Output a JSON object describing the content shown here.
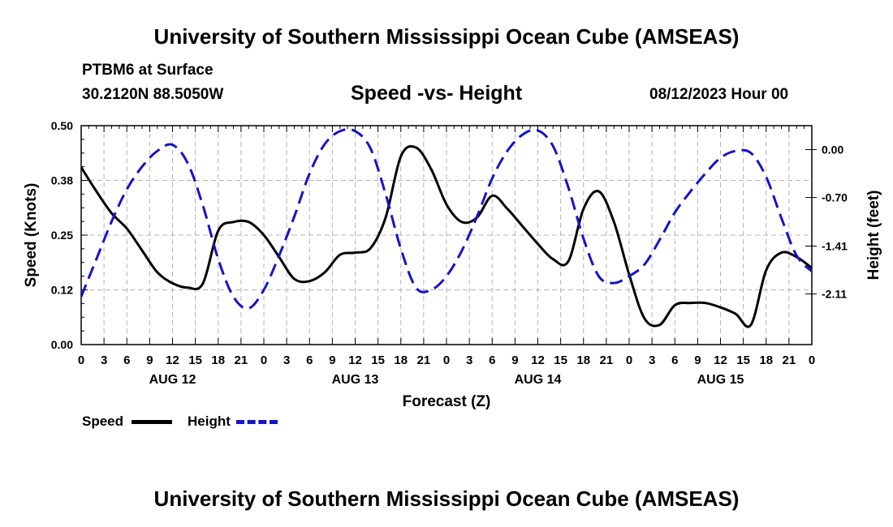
{
  "page": {
    "title_top": "University of Southern Mississippi Ocean Cube (AMSEAS)",
    "title_bottom": "University of Southern Mississippi Ocean Cube (AMSEAS)",
    "station": "PTBM6 at Surface",
    "coords": "30.2120N  88.5050W",
    "subtitle": "Speed -vs- Height",
    "datetime": "08/12/2023 Hour 00"
  },
  "legend": {
    "speed_label": "Speed",
    "height_label": "Height"
  },
  "colors": {
    "speed": "#000000",
    "height": "#1414c8",
    "grid": "#b4b4b4"
  },
  "chart_data": {
    "type": "line",
    "title": "Speed -vs- Height",
    "xlabel": "Forecast (Z)",
    "ylabel_left": "Speed (Knots)",
    "ylabel_right": "Height (feet)",
    "x_range": [
      0,
      96
    ],
    "x_tick_labels": [
      "0",
      "3",
      "6",
      "9",
      "12",
      "15",
      "18",
      "21",
      "0",
      "3",
      "6",
      "9",
      "12",
      "15",
      "18",
      "21",
      "0",
      "3",
      "6",
      "9",
      "12",
      "15",
      "18",
      "21",
      "0",
      "3",
      "6",
      "9",
      "12",
      "15",
      "18",
      "21",
      "0"
    ],
    "day_labels": [
      {
        "label": "AUG 12",
        "hour": 12
      },
      {
        "label": "AUG 13",
        "hour": 36
      },
      {
        "label": "AUG 14",
        "hour": 60
      },
      {
        "label": "AUG 15",
        "hour": 84
      }
    ],
    "y_left": {
      "ylim": [
        0,
        0.5
      ],
      "ticks": [
        0.0,
        0.125,
        0.25,
        0.375,
        0.5
      ],
      "tick_labels": [
        "0.00",
        "0.12",
        "0.25",
        "0.38",
        "0.50"
      ]
    },
    "y_right": {
      "ylim": [
        -2.85,
        0.35
      ],
      "ticks": [
        -2.11,
        -1.41,
        -0.7,
        0.0
      ],
      "tick_labels": [
        "-2.11",
        "-1.41",
        "-0.70",
        "0.00"
      ]
    },
    "grid": true,
    "series": [
      {
        "name": "Speed",
        "axis": "left",
        "style": "solid",
        "x": [
          0,
          2,
          4,
          6,
          8,
          10,
          12,
          14,
          16,
          18,
          20,
          22,
          24,
          26,
          28,
          30,
          32,
          34,
          36,
          38,
          40,
          42,
          44,
          46,
          48,
          50,
          52,
          54,
          56,
          58,
          60,
          62,
          64,
          66,
          68,
          70,
          72,
          74,
          76,
          78,
          80,
          82,
          84,
          86,
          88,
          90,
          92,
          94,
          96
        ],
        "y": [
          0.405,
          0.35,
          0.3,
          0.265,
          0.215,
          0.165,
          0.14,
          0.13,
          0.14,
          0.26,
          0.28,
          0.28,
          0.25,
          0.2,
          0.15,
          0.145,
          0.165,
          0.205,
          0.21,
          0.22,
          0.29,
          0.43,
          0.45,
          0.4,
          0.32,
          0.28,
          0.29,
          0.34,
          0.31,
          0.27,
          0.23,
          0.195,
          0.19,
          0.31,
          0.35,
          0.28,
          0.16,
          0.06,
          0.045,
          0.09,
          0.095,
          0.095,
          0.085,
          0.07,
          0.045,
          0.17,
          0.21,
          0.2,
          0.175
        ]
      },
      {
        "name": "Height",
        "axis": "right",
        "style": "dashed",
        "x": [
          0,
          2,
          4,
          6,
          8,
          10,
          12,
          14,
          16,
          18,
          20,
          22,
          24,
          26,
          28,
          30,
          32,
          34,
          36,
          38,
          40,
          42,
          44,
          46,
          48,
          50,
          52,
          54,
          56,
          58,
          60,
          62,
          64,
          66,
          68,
          70,
          72,
          74,
          76,
          78,
          80,
          82,
          84,
          86,
          88,
          90,
          92,
          94,
          96
        ],
        "y": [
          -2.15,
          -1.6,
          -1.05,
          -0.58,
          -0.25,
          -0.02,
          0.07,
          -0.2,
          -0.82,
          -1.6,
          -2.15,
          -2.32,
          -2.05,
          -1.55,
          -0.98,
          -0.35,
          0.08,
          0.27,
          0.27,
          0.02,
          -0.65,
          -1.45,
          -2.02,
          -2.05,
          -1.85,
          -1.48,
          -0.98,
          -0.42,
          -0.02,
          0.22,
          0.28,
          0.05,
          -0.55,
          -1.3,
          -1.85,
          -1.95,
          -1.85,
          -1.68,
          -1.32,
          -0.92,
          -0.62,
          -0.35,
          -0.12,
          -0.02,
          -0.05,
          -0.4,
          -1.0,
          -1.55,
          -1.78
        ]
      }
    ]
  }
}
